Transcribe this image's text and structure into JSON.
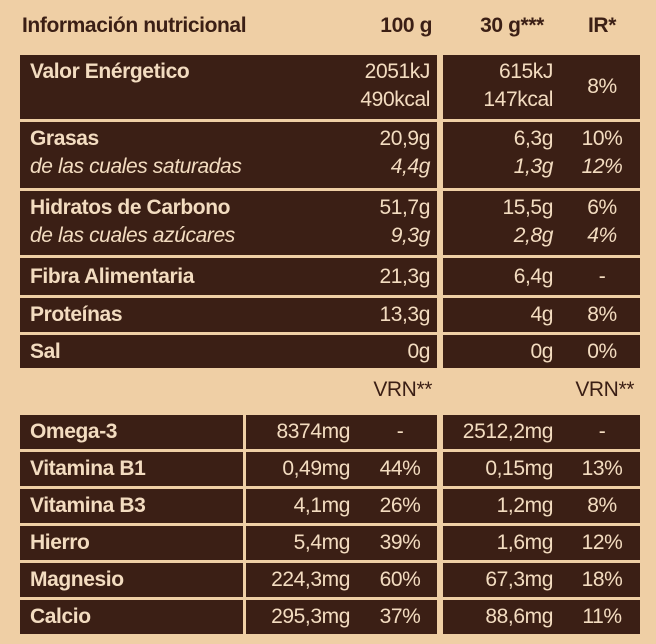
{
  "header": {
    "title": "Información nutricional",
    "col_100g": "100 g",
    "col_30g": "30 g***",
    "col_ir": "IR*"
  },
  "nutrients": [
    {
      "label": "Valor Enérgetico",
      "per_100g": [
        "2051kJ",
        "490kcal"
      ],
      "per_30g": [
        "615kJ",
        "147kcal"
      ],
      "ir": "8%"
    },
    {
      "label": "Grasas",
      "per_100g": "20,9g",
      "per_30g": "6,3g",
      "ir": "10%",
      "sub": {
        "label": "de las cuales saturadas",
        "per_100g": "4,4g",
        "per_30g": "1,3g",
        "ir": "12%"
      }
    },
    {
      "label": "Hidratos de Carbono",
      "per_100g": "51,7g",
      "per_30g": "15,5g",
      "ir": "6%",
      "sub": {
        "label": "de las cuales azúcares",
        "per_100g": "9,3g",
        "per_30g": "2,8g",
        "ir": "4%"
      }
    },
    {
      "label": "Fibra Alimentaria",
      "per_100g": "21,3g",
      "per_30g": "6,4g",
      "ir": "-"
    },
    {
      "label": "Proteínas",
      "per_100g": "13,3g",
      "per_30g": "4g",
      "ir": "8%"
    },
    {
      "label": "Sal",
      "per_100g": "0g",
      "per_30g": "0g",
      "ir": "0%"
    }
  ],
  "vrn_header": [
    "VRN**",
    "VRN**"
  ],
  "minerals": [
    {
      "label": "Omega-3",
      "per_100g": "8374mg",
      "vrn_100g": "-",
      "per_30g": "2512,2mg",
      "vrn_30g": "-"
    },
    {
      "label": "Vitamina B1",
      "per_100g": "0,49mg",
      "vrn_100g": "44%",
      "per_30g": "0,15mg",
      "vrn_30g": "13%"
    },
    {
      "label": "Vitamina B3",
      "per_100g": "4,1mg",
      "vrn_100g": "26%",
      "per_30g": "1,2mg",
      "vrn_30g": "8%"
    },
    {
      "label": "Hierro",
      "per_100g": "5,4mg",
      "vrn_100g": "39%",
      "per_30g": "1,6mg",
      "vrn_30g": "12%"
    },
    {
      "label": "Magnesio",
      "per_100g": "224,3mg",
      "vrn_100g": "60%",
      "per_30g": "67,3mg",
      "vrn_30g": "18%"
    },
    {
      "label": "Calcio",
      "per_100g": "295,3mg",
      "vrn_100g": "37%",
      "per_30g": "88,6mg",
      "vrn_30g": "11%"
    }
  ]
}
